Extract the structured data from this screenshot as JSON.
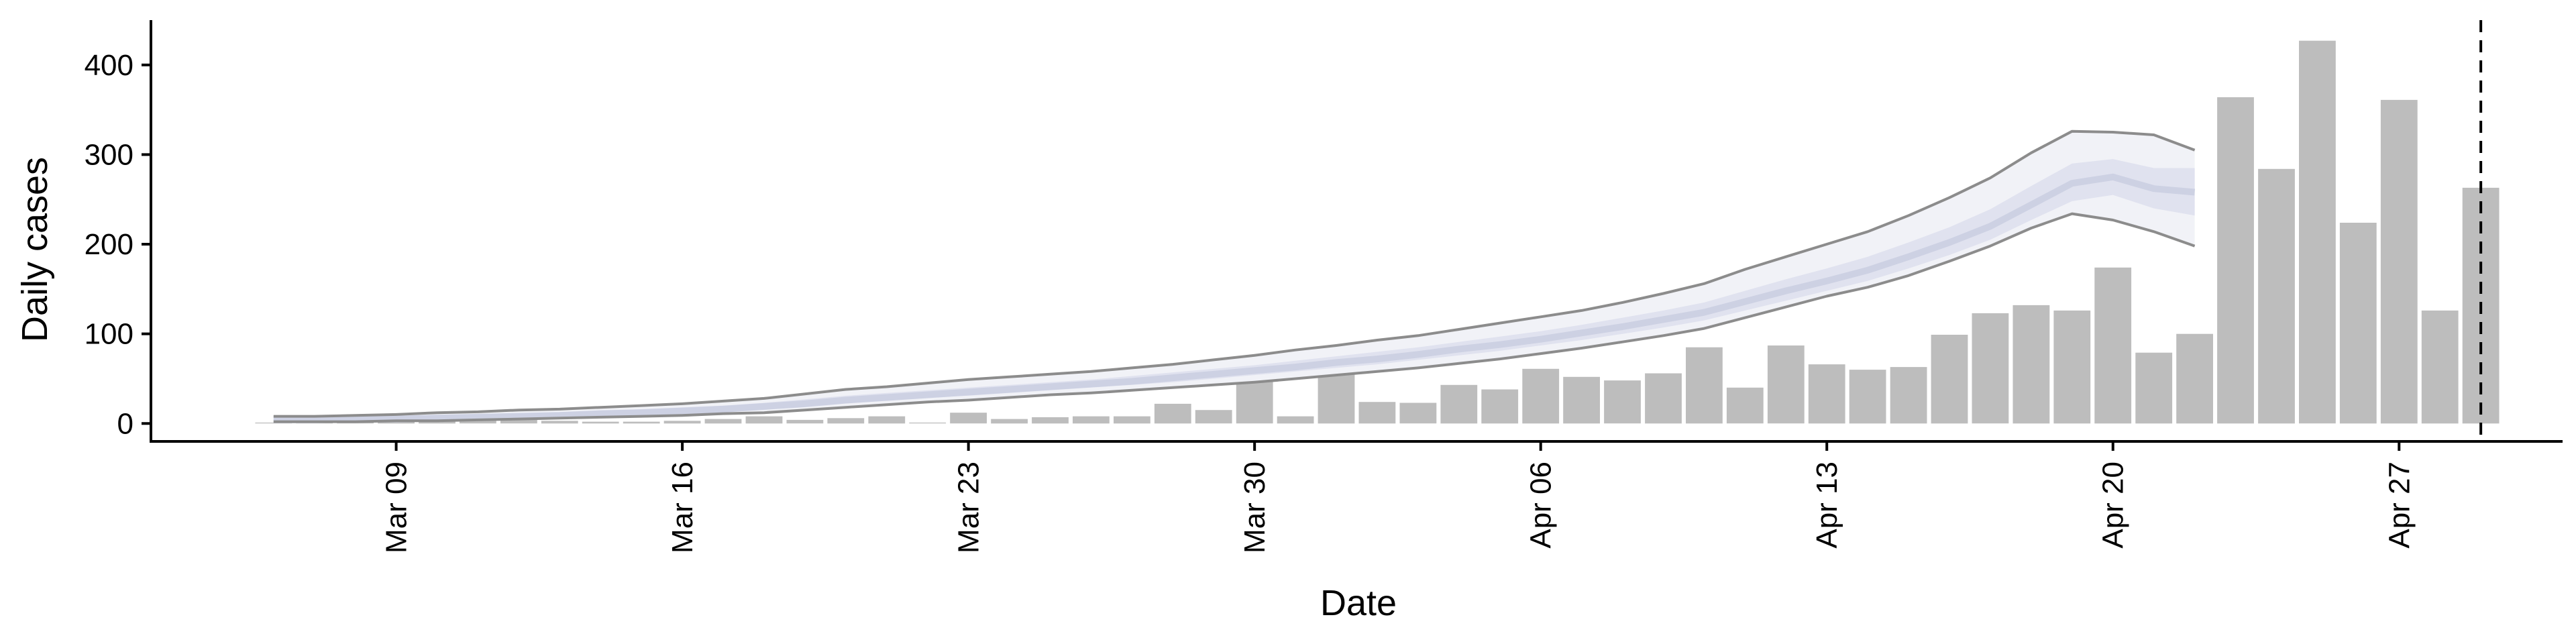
{
  "chart_data": {
    "type": "bar",
    "xlabel": "Date",
    "ylabel": "Daily cases",
    "ylim": [
      -20,
      450
    ],
    "xlim": [
      "2020-03-03",
      "2020-05-01"
    ],
    "y_ticks": [
      0,
      100,
      200,
      300,
      400
    ],
    "x_ticks": [
      {
        "date": "2020-03-09",
        "label": "Mar 09"
      },
      {
        "date": "2020-03-16",
        "label": "Mar 16"
      },
      {
        "date": "2020-03-23",
        "label": "Mar 23"
      },
      {
        "date": "2020-03-30",
        "label": "Mar 30"
      },
      {
        "date": "2020-04-06",
        "label": "Apr 06"
      },
      {
        "date": "2020-04-13",
        "label": "Apr 13"
      },
      {
        "date": "2020-04-20",
        "label": "Apr 20"
      },
      {
        "date": "2020-04-27",
        "label": "Apr 27"
      }
    ],
    "grid": false,
    "legend": "none",
    "bars": {
      "start_date": "2020-03-06",
      "values": [
        1,
        1,
        1,
        2,
        3,
        4,
        4,
        3,
        2,
        2,
        3,
        5,
        8,
        4,
        6,
        8,
        1,
        12,
        5,
        7,
        8,
        8,
        22,
        15,
        48,
        8,
        57,
        24,
        23,
        43,
        38,
        61,
        52,
        48,
        56,
        85,
        40,
        87,
        66,
        60,
        63,
        99,
        123,
        132,
        126,
        174,
        79,
        100,
        364,
        284,
        427,
        224,
        361,
        126,
        263
      ],
      "color": "#bdbdbd"
    },
    "forecast": {
      "start_date": "2020-03-06",
      "upper_90": [
        8,
        8,
        9,
        10,
        12,
        13,
        15,
        16,
        18,
        20,
        22,
        25,
        28,
        33,
        38,
        41,
        45,
        49,
        52,
        55,
        58,
        62,
        66,
        71,
        76,
        82,
        87,
        93,
        98,
        105,
        112,
        119,
        126,
        135,
        145,
        156,
        172,
        186,
        200,
        214,
        232,
        252,
        274,
        302,
        326,
        325,
        322,
        305
      ],
      "upper_50": [
        5,
        5,
        6,
        7,
        8,
        10,
        11,
        12,
        14,
        16,
        18,
        20,
        23,
        27,
        31,
        34,
        37,
        40,
        43,
        46,
        49,
        53,
        57,
        61,
        65,
        70,
        75,
        80,
        85,
        91,
        97,
        103,
        110,
        118,
        126,
        135,
        148,
        161,
        173,
        186,
        202,
        219,
        239,
        265,
        290,
        295,
        285,
        285
      ],
      "median": [
        4,
        4,
        5,
        5,
        6,
        7,
        8,
        9,
        11,
        12,
        14,
        16,
        19,
        22,
        26,
        29,
        32,
        35,
        38,
        41,
        44,
        47,
        51,
        55,
        59,
        63,
        68,
        72,
        77,
        83,
        88,
        94,
        101,
        108,
        116,
        124,
        136,
        148,
        159,
        171,
        186,
        202,
        220,
        244,
        268,
        275,
        262,
        258
      ],
      "lower_50": [
        3,
        3,
        4,
        4,
        5,
        6,
        7,
        8,
        9,
        11,
        12,
        14,
        16,
        19,
        23,
        26,
        29,
        31,
        34,
        37,
        40,
        43,
        46,
        50,
        54,
        58,
        62,
        66,
        71,
        76,
        81,
        87,
        93,
        100,
        107,
        115,
        126,
        137,
        148,
        159,
        173,
        188,
        205,
        227,
        248,
        255,
        240,
        232
      ],
      "lower_90": [
        2,
        2,
        2,
        3,
        3,
        4,
        5,
        6,
        7,
        8,
        9,
        11,
        12,
        15,
        18,
        21,
        24,
        26,
        29,
        32,
        34,
        37,
        40,
        43,
        46,
        50,
        54,
        58,
        62,
        67,
        72,
        78,
        84,
        91,
        98,
        106,
        118,
        130,
        142,
        152,
        165,
        181,
        198,
        218,
        234,
        227,
        214,
        198
      ],
      "band_90_color": "#f1f2f7",
      "band_50_color": "#e0e2ef",
      "median_color": "#cdd1e3",
      "bound_line_color": "#8c8c8c"
    },
    "vline": {
      "date": "2020-04-29",
      "style": "dashed",
      "color": "#000000"
    }
  }
}
